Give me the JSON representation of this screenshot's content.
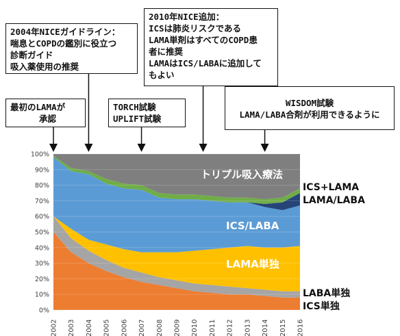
{
  "callouts": {
    "first_lama": [
      "最初のLAMAが",
      "承認"
    ],
    "nice_2004": [
      "2004年NICEガイドライン：",
      "喘息とCOPDの鑑別に役立つ",
      "診断ガイド",
      "吸入薬使用の推奨"
    ],
    "torch": [
      "TORCH試験",
      "UPLIFT試験"
    ],
    "nice_2010": [
      "2010年NICE追加：",
      "ICSは肺炎リスクである",
      "LAMA単剤はすべてのCOPD患",
      "者に推奨",
      "LAMAはICS/LABAに追加して",
      "もよい"
    ],
    "wisdom": [
      "WISDOM試験",
      "LAMA/LABA合剤が利用できるように"
    ]
  },
  "chart_data": {
    "type": "area",
    "stacked": true,
    "x": [
      "2002",
      "2003",
      "2004",
      "2005",
      "2006",
      "2007",
      "2008",
      "2009",
      "2010",
      "2011",
      "2012",
      "2013",
      "2014",
      "2015",
      "2016"
    ],
    "ylim": [
      0,
      100
    ],
    "y_ticks": [
      "0%",
      "10%",
      "20%",
      "30%",
      "40%",
      "50%",
      "60%",
      "70%",
      "80%",
      "90%",
      "100%"
    ],
    "series": [
      {
        "name": "ICS単独",
        "color": "#ed7d31",
        "values": [
          50,
          37,
          30,
          25,
          21,
          18,
          16,
          14,
          12,
          11,
          10,
          10,
          9,
          8,
          8
        ]
      },
      {
        "name": "LABA単独",
        "color": "#a5a5a5",
        "values": [
          10,
          9,
          8,
          7,
          6,
          6,
          5,
          5,
          5,
          5,
          5,
          4,
          4,
          4,
          4
        ]
      },
      {
        "name": "LAMA単独",
        "color": "#ffc000",
        "values": [
          0,
          6,
          7,
          10,
          12,
          13,
          16,
          18,
          21,
          23,
          25,
          27,
          27,
          28,
          29
        ]
      },
      {
        "name": "ICS/LABA",
        "color": "#5b9bd5",
        "values": [
          38,
          37,
          42,
          39,
          39,
          40,
          35,
          34,
          33,
          31,
          29,
          28,
          26,
          24,
          26
        ]
      },
      {
        "name": "LAMA/LABA",
        "color": "#264478",
        "values": [
          0,
          0,
          0,
          0,
          0,
          0,
          0,
          0,
          0,
          0,
          0,
          0,
          2,
          5,
          8
        ]
      },
      {
        "name": "ICS+LAMA",
        "color": "#70ad47",
        "values": [
          1,
          2,
          2,
          3,
          3,
          3,
          3,
          3,
          3,
          3,
          3,
          3,
          3,
          3,
          3
        ]
      },
      {
        "name": "トリプル吸入療法",
        "color": "#7f7f7f",
        "values": [
          1,
          9,
          11,
          16,
          19,
          20,
          25,
          26,
          26,
          27,
          28,
          28,
          29,
          28,
          22
        ]
      }
    ],
    "series_labels": {
      "triple": "トリプル吸入療法",
      "ics_lama": "ICS+LAMA",
      "lama_laba": "LAMA/LABA",
      "ics_laba": "ICS/LABA",
      "lama": "LAMA単独",
      "laba": "LABA単独",
      "ics": "ICS単独"
    }
  }
}
